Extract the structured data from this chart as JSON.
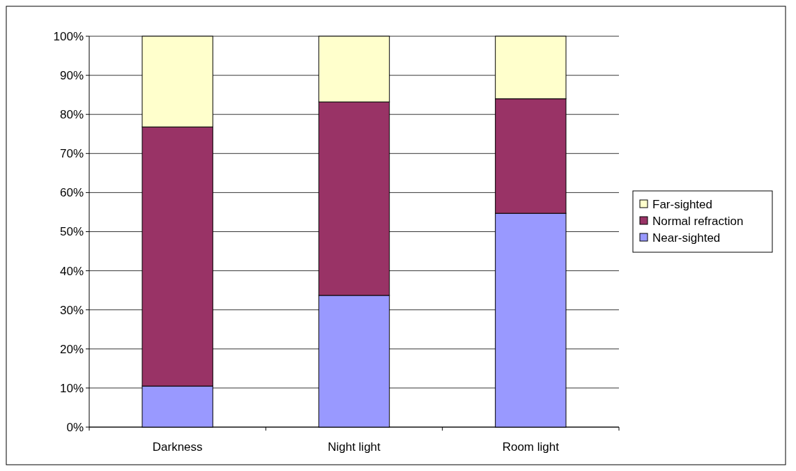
{
  "chart_data": {
    "type": "bar",
    "stacked": true,
    "categories": [
      "Darkness",
      "Night light",
      "Room light"
    ],
    "series": [
      {
        "name": "Near-sighted",
        "color": "#9999ff",
        "values": [
          10.5,
          33.7,
          54.7
        ]
      },
      {
        "name": "Normal refraction",
        "color": "#993366",
        "values": [
          66.3,
          49.5,
          29.3
        ]
      },
      {
        "name": "Far-sighted",
        "color": "#ffffcc",
        "values": [
          23.2,
          16.8,
          16.0
        ]
      }
    ],
    "ylim": [
      0,
      100
    ],
    "yticks": [
      {
        "value": 0,
        "label": "0%"
      },
      {
        "value": 10,
        "label": "10%"
      },
      {
        "value": 20,
        "label": "20%"
      },
      {
        "value": 30,
        "label": "30%"
      },
      {
        "value": 40,
        "label": "40%"
      },
      {
        "value": 50,
        "label": "50%"
      },
      {
        "value": 60,
        "label": "60%"
      },
      {
        "value": 70,
        "label": "70%"
      },
      {
        "value": 80,
        "label": "80%"
      },
      {
        "value": 90,
        "label": "90%"
      },
      {
        "value": 100,
        "label": "100%"
      }
    ],
    "grid": "y",
    "legend": "right"
  }
}
